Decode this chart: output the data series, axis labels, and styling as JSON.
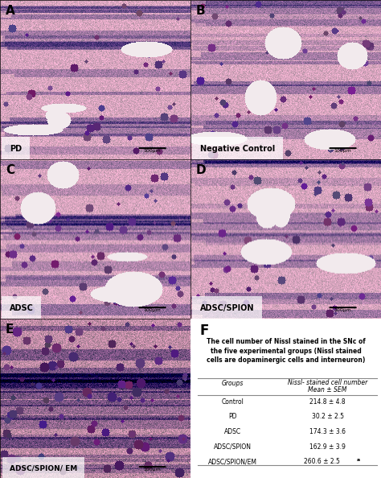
{
  "panel_labels": [
    "A",
    "B",
    "C",
    "D",
    "E",
    "F"
  ],
  "image_labels": [
    {
      "text": "PD",
      "panel": "A"
    },
    {
      "text": "Negative Control",
      "panel": "B"
    },
    {
      "text": "ADSC",
      "panel": "C"
    },
    {
      "text": "ADSC/SPION",
      "panel": "D"
    },
    {
      "text": "ADSC/SPION/ EM",
      "panel": "E"
    }
  ],
  "scale_bar_text": "100μm",
  "table_title": "The cell number of Nissl stained in the SNc of\nthe five experimental groups (Nissl stained\ncells are dopaminergic cells and interneuron)",
  "col_header_1": "Groups",
  "col_header_2": "Nissl- stained cell number",
  "col_header_2b": "Mean ± SEM",
  "table_data": [
    [
      "Control",
      "214.8 ± 4.8"
    ],
    [
      "PD",
      "30.2 ± 2.5"
    ],
    [
      "ADSC",
      "174.3 ± 3.6"
    ],
    [
      "ADSC/SPION",
      "162.9 ± 3.9"
    ],
    [
      "ADSC/SPION/EM",
      "260.6 ± 2.5"
    ]
  ],
  "last_row_superscript": "a",
  "bg_color": "#ffffff",
  "border_color": "#000000",
  "text_color": "#000000",
  "table_line_color": "#888888"
}
